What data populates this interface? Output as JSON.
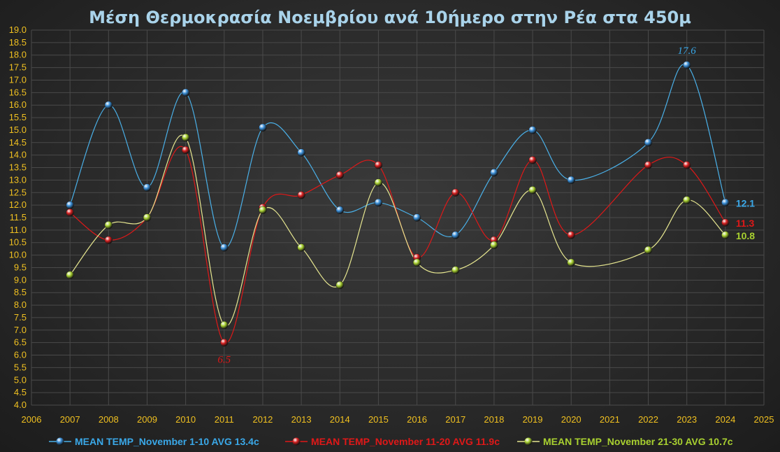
{
  "chart_data": {
    "type": "line",
    "title": "Μέση Θερμοκρασία Νοεμβρίου ανά 10ήμερο στην Ρέα στα 450μ",
    "xlim": [
      2006,
      2025
    ],
    "ylim": [
      4.0,
      19.0
    ],
    "x_ticks": [
      "2006",
      "2007",
      "2008",
      "2009",
      "2010",
      "2011",
      "2012",
      "2013",
      "2014",
      "2015",
      "2016",
      "2017",
      "2018",
      "2019",
      "2020",
      "2021",
      "2022",
      "2023",
      "2024",
      "2025"
    ],
    "y_ticks": [
      "4.0",
      "4.5",
      "5.0",
      "5.5",
      "6.0",
      "6.5",
      "7.0",
      "7.5",
      "8.0",
      "8.5",
      "9.0",
      "9.5",
      "10.0",
      "10.5",
      "11.0",
      "11.5",
      "12.0",
      "12.5",
      "13.0",
      "13.5",
      "14.0",
      "14.5",
      "15.0",
      "15.5",
      "16.0",
      "16.5",
      "17.0",
      "17.5",
      "18.0",
      "18.5",
      "19.0"
    ],
    "grid": true,
    "legend_position": "bottom",
    "series": [
      {
        "name": "MEAN TEMP_November 1-10 AVG 13.4c",
        "color": "#3a8fd8",
        "line_color": "#4ab0e8",
        "points": [
          [
            2007,
            12.0
          ],
          [
            2008,
            16.0
          ],
          [
            2009,
            12.7
          ],
          [
            2010,
            16.5
          ],
          [
            2011,
            10.3
          ],
          [
            2012,
            15.1
          ],
          [
            2013,
            14.1
          ],
          [
            2014,
            11.8
          ],
          [
            2015,
            12.1
          ],
          [
            2016,
            11.5
          ],
          [
            2017,
            10.8
          ],
          [
            2018,
            13.3
          ],
          [
            2019,
            15.0
          ],
          [
            2020,
            13.0
          ],
          [
            2022,
            14.5
          ],
          [
            2023,
            17.6
          ],
          [
            2024,
            12.1
          ]
        ]
      },
      {
        "name": "MEAN TEMP_November 11-20 AVG 11.9c",
        "color": "#d82020",
        "line_color": "#e01818",
        "points": [
          [
            2007,
            11.7
          ],
          [
            2008,
            10.6
          ],
          [
            2009,
            11.5
          ],
          [
            2010,
            14.2
          ],
          [
            2011,
            6.5
          ],
          [
            2012,
            11.9
          ],
          [
            2013,
            12.4
          ],
          [
            2014,
            13.2
          ],
          [
            2015,
            13.6
          ],
          [
            2016,
            9.9
          ],
          [
            2017,
            12.5
          ],
          [
            2018,
            10.6
          ],
          [
            2019,
            13.8
          ],
          [
            2020,
            10.8
          ],
          [
            2022,
            13.6
          ],
          [
            2023,
            13.6
          ],
          [
            2024,
            11.3
          ]
        ]
      },
      {
        "name": "MEAN TEMP_November 21-30 AVG 10.7c",
        "color": "#a8d030",
        "line_color": "#e6e690",
        "points": [
          [
            2007,
            9.2
          ],
          [
            2008,
            11.2
          ],
          [
            2009,
            11.5
          ],
          [
            2010,
            14.7
          ],
          [
            2011,
            7.2
          ],
          [
            2012,
            11.8
          ],
          [
            2013,
            10.3
          ],
          [
            2014,
            8.8
          ],
          [
            2015,
            12.9
          ],
          [
            2016,
            9.7
          ],
          [
            2017,
            9.4
          ],
          [
            2018,
            10.4
          ],
          [
            2019,
            12.6
          ],
          [
            2020,
            9.7
          ],
          [
            2022,
            10.2
          ],
          [
            2023,
            12.2
          ],
          [
            2024,
            10.8
          ]
        ]
      }
    ],
    "annotations": [
      {
        "text": "17.6",
        "x": 2023,
        "y": 17.6,
        "series": 0,
        "style": "above"
      },
      {
        "text": "6.5",
        "x": 2011,
        "y": 6.5,
        "series": 1,
        "style": "below"
      }
    ],
    "end_labels": [
      {
        "text": "12.1",
        "x": 2024,
        "y": 12.1,
        "series": 0
      },
      {
        "text": "11.3",
        "x": 2024,
        "y": 11.3,
        "series": 1
      },
      {
        "text": "10.8",
        "x": 2024,
        "y": 10.8,
        "series": 2
      }
    ],
    "colors": {
      "grid": "#4a4a4a",
      "tick": "#f0c020",
      "title": "#a9d3ea",
      "label_blue": "#3aa8e8",
      "label_red": "#e01818",
      "label_green": "#a8d030"
    }
  }
}
